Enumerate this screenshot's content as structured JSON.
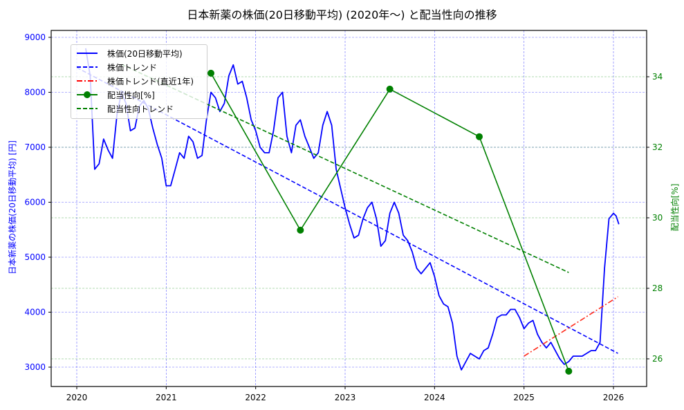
{
  "title": "日本新薬の株価(20日移動平均) (2020年〜) と配当性向の推移",
  "legend": {
    "items": [
      {
        "label": "株価(20日移動平均)",
        "color": "#0000ff",
        "style": "solid"
      },
      {
        "label": "株価トレンド",
        "color": "#0000ff",
        "style": "dashed"
      },
      {
        "label": "株価トレンド(直近1年)",
        "color": "#ff0000",
        "style": "dashdot"
      },
      {
        "label": "配当性向[%]",
        "color": "#008000",
        "style": "solid-marker"
      },
      {
        "label": "配当性向トレンド",
        "color": "#008000",
        "style": "dashed"
      }
    ]
  },
  "axes": {
    "left_label": "日本新薬の株価(20日移動平均) [円]",
    "right_label": "配当性向[%]"
  },
  "chart_data": {
    "type": "line",
    "title": "日本新薬の株価(20日移動平均) (2020年〜) と配当性向の推移",
    "xlabel": "",
    "ylabel": "日本新薬の株価(20日移動平均) [円]",
    "y2label": "配当性向[%]",
    "x_ticks": [
      "2020",
      "2021",
      "2022",
      "2023",
      "2024",
      "2025",
      "2026"
    ],
    "y_ticks": [
      3000,
      4000,
      5000,
      6000,
      7000,
      8000,
      9000
    ],
    "y2_ticks": [
      26,
      28,
      30,
      32,
      34
    ],
    "ylim": [
      2650,
      9100
    ],
    "y2lim": [
      25.3,
      35.2
    ],
    "xlim": [
      2019.7,
      2026.35
    ],
    "grid": true,
    "legend_position": "upper left",
    "series": [
      {
        "name": "株価(20日移動平均)",
        "axis": "left",
        "color": "#0000ff",
        "style": "solid",
        "x": [
          2020.1,
          2020.15,
          2020.2,
          2020.25,
          2020.3,
          2020.35,
          2020.4,
          2020.45,
          2020.5,
          2020.55,
          2020.6,
          2020.65,
          2020.7,
          2020.75,
          2020.8,
          2020.85,
          2020.9,
          2020.95,
          2021.0,
          2021.05,
          2021.1,
          2021.15,
          2021.2,
          2021.25,
          2021.3,
          2021.35,
          2021.4,
          2021.45,
          2021.5,
          2021.55,
          2021.6,
          2021.65,
          2021.7,
          2021.75,
          2021.8,
          2021.85,
          2021.9,
          2021.95,
          2022.0,
          2022.05,
          2022.1,
          2022.15,
          2022.2,
          2022.25,
          2022.3,
          2022.35,
          2022.4,
          2022.45,
          2022.5,
          2022.55,
          2022.6,
          2022.65,
          2022.7,
          2022.75,
          2022.8,
          2022.85,
          2022.9,
          2022.95,
          2023.0,
          2023.05,
          2023.1,
          2023.15,
          2023.2,
          2023.25,
          2023.3,
          2023.35,
          2023.4,
          2023.45,
          2023.5,
          2023.55,
          2023.6,
          2023.65,
          2023.7,
          2023.75,
          2023.8,
          2023.85,
          2023.9,
          2023.95,
          2024.0,
          2024.05,
          2024.1,
          2024.15,
          2024.2,
          2024.25,
          2024.3,
          2024.35,
          2024.4,
          2024.45,
          2024.5,
          2024.55,
          2024.6,
          2024.65,
          2024.7,
          2024.75,
          2024.8,
          2024.85,
          2024.9,
          2024.95,
          2025.0,
          2025.05,
          2025.1,
          2025.15,
          2025.2,
          2025.25,
          2025.3,
          2025.35,
          2025.4,
          2025.45,
          2025.5,
          2025.55,
          2025.6,
          2025.65,
          2025.7,
          2025.75,
          2025.8,
          2025.85,
          2025.9,
          2025.95,
          2026.0,
          2026.03,
          2026.06
        ],
        "values": [
          8800,
          8300,
          6600,
          6700,
          7150,
          6950,
          6800,
          7600,
          8000,
          7800,
          7300,
          7350,
          7750,
          7850,
          7700,
          7350,
          7050,
          6800,
          6300,
          6300,
          6600,
          6900,
          6800,
          7200,
          7100,
          6800,
          6850,
          7500,
          8000,
          7900,
          7650,
          7800,
          8300,
          8500,
          8150,
          8200,
          7900,
          7500,
          7300,
          7000,
          6900,
          6900,
          7300,
          7900,
          8000,
          7200,
          6900,
          7400,
          7500,
          7200,
          7000,
          6800,
          6900,
          7400,
          7650,
          7400,
          6600,
          6250,
          5900,
          5600,
          5350,
          5400,
          5700,
          5900,
          6000,
          5700,
          5200,
          5300,
          5800,
          6000,
          5800,
          5400,
          5300,
          5100,
          4800,
          4700,
          4800,
          4900,
          4650,
          4300,
          4150,
          4100,
          3800,
          3200,
          2950,
          3100,
          3250,
          3200,
          3150,
          3300,
          3350,
          3600,
          3900,
          3950,
          3950,
          4050,
          4050,
          3900,
          3700,
          3800,
          3850,
          3600,
          3450,
          3350,
          3450,
          3300,
          3150,
          3050,
          3100,
          3200,
          3200,
          3200,
          3250,
          3300,
          3300,
          3450,
          4800,
          5700,
          5800,
          5750,
          5600
        ]
      },
      {
        "name": "株価トレンド",
        "axis": "left",
        "color": "#0000ff",
        "style": "dashed",
        "x": [
          2020.0,
          2026.05
        ],
        "values": [
          8450,
          3250
        ]
      },
      {
        "name": "株価トレンド(直近1年)",
        "axis": "left",
        "color": "#ff0000",
        "style": "dashdot",
        "x": [
          2025.0,
          2026.05
        ],
        "values": [
          3200,
          4280
        ]
      },
      {
        "name": "配当性向[%]",
        "axis": "right",
        "color": "#008000",
        "style": "solid-marker",
        "x": [
          2021.5,
          2022.5,
          2023.5,
          2024.5,
          2025.5
        ],
        "values": [
          34.1,
          29.65,
          33.65,
          32.3,
          25.65
        ]
      },
      {
        "name": "配当性向トレンド",
        "axis": "right",
        "color": "#008000",
        "style": "dashed",
        "x": [
          2020.5,
          2025.5
        ],
        "values": [
          34.35,
          28.45
        ]
      }
    ]
  }
}
